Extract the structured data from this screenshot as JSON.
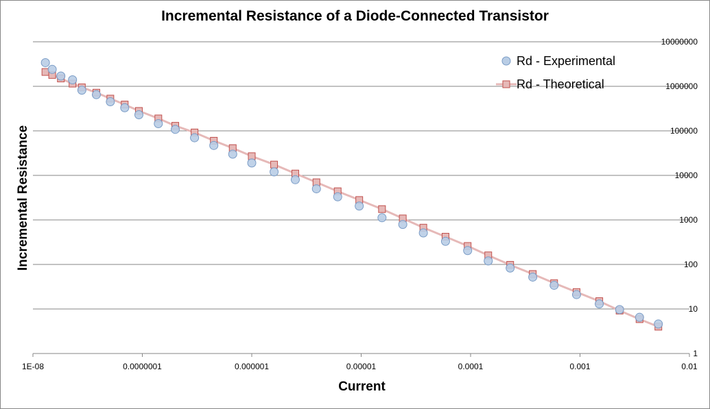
{
  "chart_data": {
    "type": "scatter",
    "title": "Incremental Resistance of a Diode-Connected Transistor",
    "xlabel": "Current",
    "ylabel": "Incremental Resistance",
    "x_scale": "log",
    "y_scale": "log",
    "xlim": [
      1e-08,
      0.01
    ],
    "ylim": [
      1,
      10000000
    ],
    "x_tick_labels": [
      "1E-08",
      "0.0000001",
      "0.000001",
      "0.00001",
      "0.0001",
      "0.001",
      "0.01"
    ],
    "y_tick_labels": [
      "1",
      "10",
      "100",
      "1000",
      "10000",
      "100000",
      "1000000",
      "10000000"
    ],
    "grid": "horizontal major",
    "legend": "top-right",
    "series": [
      {
        "name": "Rd - Experimental",
        "marker": "circle",
        "color": "#b9cde5",
        "edge": "#7a9cc6",
        "points": [
          [
            1.3e-08,
            3400000
          ],
          [
            1.5e-08,
            2400000
          ],
          [
            1.8e-08,
            1700000
          ],
          [
            2.3e-08,
            1400000
          ],
          [
            2.8e-08,
            820000
          ],
          [
            3.8e-08,
            650000
          ],
          [
            5.1e-08,
            450000
          ],
          [
            6.9e-08,
            330000
          ],
          [
            9.3e-08,
            230000
          ],
          [
            1.4e-07,
            145000
          ],
          [
            2e-07,
            108000
          ],
          [
            3e-07,
            70000
          ],
          [
            4.5e-07,
            47000
          ],
          [
            6.7e-07,
            30000
          ],
          [
            1e-06,
            19000
          ],
          [
            1.6e-06,
            12000
          ],
          [
            2.5e-06,
            8000
          ],
          [
            3.9e-06,
            5000
          ],
          [
            6.1e-06,
            3300
          ],
          [
            9.6e-06,
            2050
          ],
          [
            1.55e-05,
            1120
          ],
          [
            2.4e-05,
            790
          ],
          [
            3.7e-05,
            510
          ],
          [
            5.9e-05,
            330
          ],
          [
            9.4e-05,
            205
          ],
          [
            0.000145,
            120
          ],
          [
            0.00023,
            83
          ],
          [
            0.00037,
            52
          ],
          [
            0.00058,
            34
          ],
          [
            0.00093,
            21
          ],
          [
            0.0015,
            13
          ],
          [
            0.0023,
            9.7
          ],
          [
            0.0035,
            6.5
          ],
          [
            0.0052,
            4.6
          ]
        ]
      },
      {
        "name": "Rd - Theoretical",
        "marker": "square",
        "line": true,
        "color": "#e6b9b8",
        "edge": "#c0504d",
        "points": [
          [
            1.3e-08,
            2100000
          ],
          [
            1.5e-08,
            1800000
          ],
          [
            1.8e-08,
            1500000
          ],
          [
            2.3e-08,
            1150000
          ],
          [
            2.8e-08,
            950000
          ],
          [
            3.8e-08,
            720000
          ],
          [
            5.1e-08,
            530000
          ],
          [
            6.9e-08,
            390000
          ],
          [
            9.3e-08,
            280000
          ],
          [
            1.4e-07,
            190000
          ],
          [
            2e-07,
            130000
          ],
          [
            3e-07,
            92000
          ],
          [
            4.5e-07,
            60000
          ],
          [
            6.7e-07,
            41000
          ],
          [
            1e-06,
            27000
          ],
          [
            1.6e-06,
            17500
          ],
          [
            2.5e-06,
            11000
          ],
          [
            3.9e-06,
            7000
          ],
          [
            6.1e-06,
            4400
          ],
          [
            9.6e-06,
            2800
          ],
          [
            1.55e-05,
            1750
          ],
          [
            2.4e-05,
            1080
          ],
          [
            3.7e-05,
            670
          ],
          [
            5.9e-05,
            420
          ],
          [
            9.4e-05,
            260
          ],
          [
            0.000145,
            160
          ],
          [
            0.00023,
            98
          ],
          [
            0.00037,
            61
          ],
          [
            0.00058,
            38
          ],
          [
            0.00093,
            24
          ],
          [
            0.0015,
            15
          ],
          [
            0.0023,
            9.2
          ],
          [
            0.0035,
            5.9
          ],
          [
            0.0052,
            4.0
          ]
        ]
      }
    ]
  }
}
